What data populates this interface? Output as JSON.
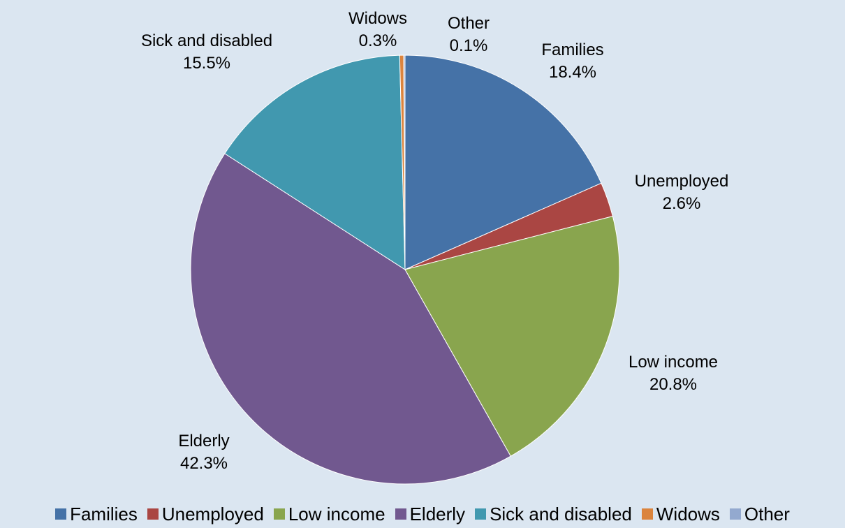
{
  "chart_data": {
    "type": "pie",
    "title": "",
    "slices": [
      {
        "label": "Families",
        "value": 18.4,
        "display": "18.4%",
        "color": "#4572a7"
      },
      {
        "label": "Unemployed",
        "value": 2.6,
        "display": "2.6%",
        "color": "#aa4643"
      },
      {
        "label": "Low income",
        "value": 20.8,
        "display": "20.8%",
        "color": "#89a54e"
      },
      {
        "label": "Elderly",
        "value": 42.3,
        "display": "42.3%",
        "color": "#71588f"
      },
      {
        "label": "Sick and disabled",
        "value": 15.5,
        "display": "15.5%",
        "color": "#4198af"
      },
      {
        "label": "Widows",
        "value": 0.3,
        "display": "0.3%",
        "color": "#db843d"
      },
      {
        "label": "Other",
        "value": 0.1,
        "display": "0.1%",
        "color": "#93a9cf"
      }
    ],
    "legend": {
      "position": "bottom"
    }
  }
}
